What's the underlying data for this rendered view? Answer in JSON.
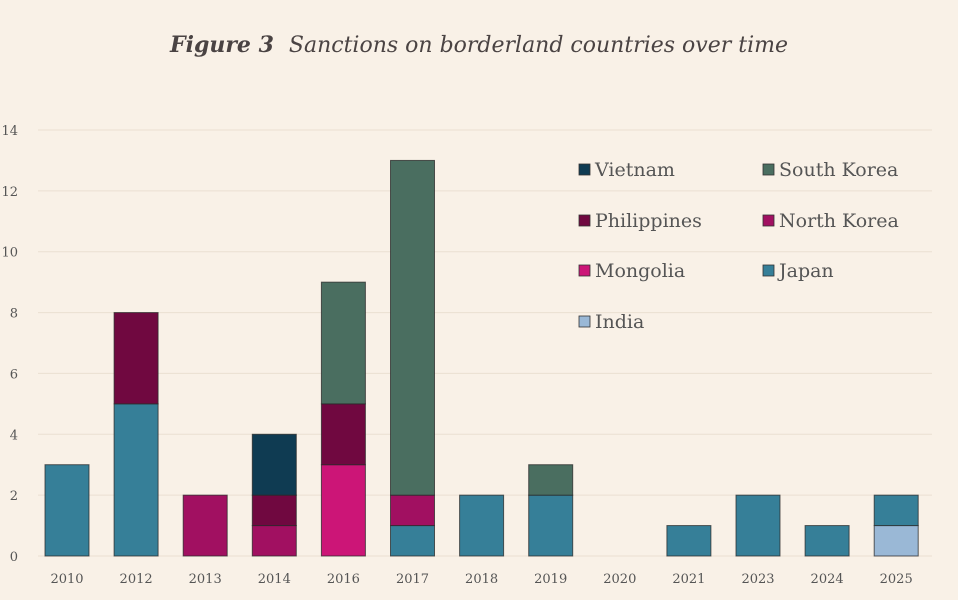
{
  "chart_data": {
    "type": "bar",
    "stacked": true,
    "title_prefix": "Figure 3",
    "title": "Sanctions on borderland countries over time",
    "xlabel": "",
    "ylabel": "",
    "ylim": [
      0,
      14
    ],
    "yticks": [
      0,
      2,
      4,
      6,
      8,
      10,
      12,
      14
    ],
    "grid": true,
    "legend_position": "top-right",
    "categories": [
      "2010",
      "2012",
      "2013",
      "2014",
      "2016",
      "2017",
      "2018",
      "2019",
      "2020",
      "2021",
      "2023",
      "2024",
      "2025"
    ],
    "series": [
      {
        "name": "India",
        "color": "#9ab8d6",
        "values": [
          0,
          0,
          0,
          0,
          0,
          0,
          0,
          0,
          0,
          0,
          0,
          0,
          1
        ]
      },
      {
        "name": "Japan",
        "color": "#367f98",
        "values": [
          3,
          5,
          0,
          0,
          0,
          1,
          2,
          2,
          0,
          1,
          2,
          1,
          1
        ]
      },
      {
        "name": "Mongolia",
        "color": "#cc1577",
        "values": [
          0,
          0,
          0,
          0,
          3,
          0,
          0,
          0,
          0,
          0,
          0,
          0,
          0
        ]
      },
      {
        "name": "North Korea",
        "color": "#a11061",
        "values": [
          0,
          0,
          2,
          1,
          0,
          1,
          0,
          0,
          0,
          0,
          0,
          0,
          0
        ]
      },
      {
        "name": "Philippines",
        "color": "#700840",
        "values": [
          0,
          3,
          0,
          1,
          2,
          0,
          0,
          0,
          0,
          0,
          0,
          0,
          0
        ]
      },
      {
        "name": "South Korea",
        "color": "#4a6e60",
        "values": [
          0,
          0,
          0,
          0,
          4,
          11,
          0,
          1,
          0,
          0,
          0,
          0,
          0
        ]
      },
      {
        "name": "Vietnam",
        "color": "#0f3b52",
        "values": [
          0,
          0,
          0,
          2,
          0,
          0,
          0,
          0,
          0,
          0,
          0,
          0,
          0
        ]
      }
    ],
    "legend_order": [
      "Vietnam",
      "South Korea",
      "Philippines",
      "North Korea",
      "Mongolia",
      "Japan",
      "India"
    ]
  }
}
